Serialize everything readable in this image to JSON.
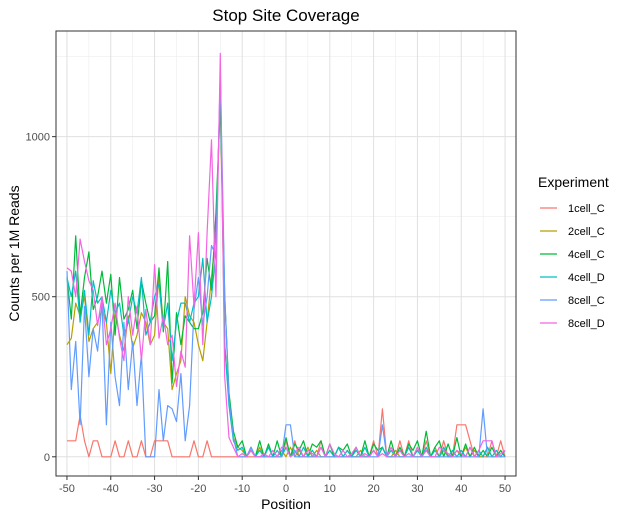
{
  "chart_data": {
    "type": "line",
    "title": "Stop Site Coverage",
    "xlabel": "Position",
    "ylabel": "Counts per 1M Reads",
    "xlim": [
      -52.5,
      52.5
    ],
    "ylim": [
      -60,
      1330
    ],
    "x_ticks": [
      -50,
      -40,
      -30,
      -20,
      -10,
      0,
      10,
      20,
      30,
      40,
      50
    ],
    "x_tick_labels": [
      "-50",
      "-40",
      "-30",
      "-20",
      "-10",
      "0",
      "10",
      "20",
      "30",
      "40",
      "50"
    ],
    "y_ticks": [
      0,
      500,
      1000
    ],
    "y_tick_labels": [
      "0",
      "500",
      "1000"
    ],
    "grid": true,
    "legend": {
      "title": "Experiment",
      "placement": "right"
    },
    "series": [
      {
        "name": "1cell_C",
        "color": "#F8766D",
        "x": [
          -50,
          -49,
          -48,
          -47,
          -46,
          -45,
          -44,
          -43,
          -42,
          -41,
          -40,
          -39,
          -38,
          -37,
          -36,
          -35,
          -34,
          -33,
          -32,
          -31,
          -30,
          -29,
          -28,
          -27,
          -26,
          -25,
          -24,
          -23,
          -22,
          -21,
          -20,
          -19,
          -18,
          -17,
          -16,
          -15,
          -14,
          -13,
          -12,
          -11,
          -10,
          -9,
          -8,
          -7,
          -6,
          -5,
          -4,
          -3,
          -2,
          -1,
          0,
          1,
          2,
          3,
          4,
          5,
          6,
          7,
          8,
          9,
          10,
          11,
          12,
          13,
          14,
          15,
          16,
          17,
          18,
          19,
          20,
          21,
          22,
          23,
          24,
          25,
          26,
          27,
          28,
          29,
          30,
          31,
          32,
          33,
          34,
          35,
          36,
          37,
          38,
          39,
          40,
          41,
          42,
          43,
          44,
          45,
          46,
          47,
          48,
          49,
          50
        ],
        "values": [
          50,
          50,
          50,
          130,
          50,
          0,
          50,
          50,
          0,
          0,
          0,
          50,
          0,
          0,
          50,
          0,
          0,
          50,
          0,
          0,
          50,
          50,
          50,
          50,
          0,
          0,
          0,
          0,
          0,
          50,
          0,
          0,
          50,
          0,
          0,
          0,
          0,
          0,
          0,
          0,
          0,
          0,
          0,
          0,
          0,
          0,
          0,
          0,
          0,
          0,
          50,
          0,
          50,
          0,
          0,
          0,
          0,
          0,
          50,
          0,
          0,
          0,
          0,
          0,
          0,
          0,
          0,
          0,
          0,
          0,
          50,
          0,
          150,
          0,
          0,
          0,
          50,
          0,
          50,
          0,
          0,
          0,
          50,
          0,
          0,
          0,
          50,
          0,
          0,
          100,
          100,
          100,
          50,
          0,
          0,
          0,
          0,
          50,
          0,
          50,
          0
        ]
      },
      {
        "name": "2cell_C",
        "color": "#B79F00",
        "x": [
          -50,
          -49,
          -48,
          -47,
          -46,
          -45,
          -44,
          -43,
          -42,
          -41,
          -40,
          -39,
          -38,
          -37,
          -36,
          -35,
          -34,
          -33,
          -32,
          -31,
          -30,
          -29,
          -28,
          -27,
          -26,
          -25,
          -24,
          -23,
          -22,
          -21,
          -20,
          -19,
          -18,
          -17,
          -16,
          -15,
          -14,
          -13,
          -12,
          -11,
          -10,
          -9,
          -8,
          -7,
          -6,
          -5,
          -4,
          -3,
          -2,
          -1,
          0,
          1,
          2,
          3,
          4,
          5,
          6,
          7,
          8,
          9,
          10,
          11,
          12,
          13,
          14,
          15,
          16,
          17,
          18,
          19,
          20,
          21,
          22,
          23,
          24,
          25,
          26,
          27,
          28,
          29,
          30,
          31,
          32,
          33,
          34,
          35,
          36,
          37,
          38,
          39,
          40,
          41,
          42,
          43,
          44,
          45,
          46,
          47,
          48,
          49,
          50
        ],
        "values": [
          350,
          370,
          480,
          440,
          500,
          360,
          400,
          420,
          460,
          420,
          260,
          450,
          380,
          330,
          440,
          340,
          380,
          450,
          420,
          350,
          380,
          570,
          420,
          400,
          210,
          260,
          300,
          500,
          440,
          420,
          350,
          300,
          420,
          560,
          700,
          1120,
          350,
          180,
          60,
          30,
          20,
          0,
          20,
          0,
          30,
          0,
          30,
          0,
          0,
          20,
          0,
          30,
          0,
          20,
          0,
          30,
          0,
          20,
          0,
          0,
          20,
          0,
          30,
          0,
          20,
          0,
          0,
          20,
          0,
          0,
          20,
          0,
          30,
          0,
          0,
          20,
          0,
          0,
          30,
          0,
          20,
          0,
          20,
          0,
          30,
          0,
          20,
          0,
          0,
          20,
          0,
          30,
          0,
          20,
          0,
          0,
          30,
          0,
          0,
          20,
          0
        ]
      },
      {
        "name": "4cell_C",
        "color": "#00BA38",
        "x": [
          -50,
          -49,
          -48,
          -47,
          -46,
          -45,
          -44,
          -43,
          -42,
          -41,
          -40,
          -39,
          -38,
          -37,
          -36,
          -35,
          -34,
          -33,
          -32,
          -31,
          -30,
          -29,
          -28,
          -27,
          -26,
          -25,
          -24,
          -23,
          -22,
          -21,
          -20,
          -19,
          -18,
          -17,
          -16,
          -15,
          -14,
          -13,
          -12,
          -11,
          -10,
          -9,
          -8,
          -7,
          -6,
          -5,
          -4,
          -3,
          -2,
          -1,
          0,
          1,
          2,
          3,
          4,
          5,
          6,
          7,
          8,
          9,
          10,
          11,
          12,
          13,
          14,
          15,
          16,
          17,
          18,
          19,
          20,
          21,
          22,
          23,
          24,
          25,
          26,
          27,
          28,
          29,
          30,
          31,
          32,
          33,
          34,
          35,
          36,
          37,
          38,
          39,
          40,
          41,
          42,
          43,
          44,
          45,
          46,
          47,
          48,
          49,
          50
        ],
        "values": [
          560,
          430,
          690,
          440,
          560,
          640,
          460,
          500,
          580,
          480,
          570,
          380,
          560,
          430,
          460,
          520,
          400,
          550,
          480,
          420,
          440,
          590,
          390,
          610,
          230,
          450,
          350,
          440,
          420,
          400,
          400,
          450,
          620,
          520,
          760,
          1100,
          500,
          200,
          80,
          30,
          50,
          0,
          30,
          0,
          50,
          0,
          40,
          0,
          50,
          0,
          60,
          0,
          40,
          20,
          50,
          0,
          40,
          30,
          50,
          0,
          40,
          0,
          30,
          20,
          40,
          0,
          30,
          0,
          50,
          0,
          40,
          20,
          30,
          0,
          50,
          0,
          30,
          0,
          40,
          20,
          50,
          0,
          80,
          0,
          30,
          50,
          0,
          40,
          0,
          60,
          0,
          40,
          0,
          30,
          0,
          20,
          0,
          30,
          0,
          20,
          0
        ]
      },
      {
        "name": "4cell_D",
        "color": "#00BFC4",
        "x": [
          -50,
          -49,
          -48,
          -47,
          -46,
          -45,
          -44,
          -43,
          -42,
          -41,
          -40,
          -39,
          -38,
          -37,
          -36,
          -35,
          -34,
          -33,
          -32,
          -31,
          -30,
          -29,
          -28,
          -27,
          -26,
          -25,
          -24,
          -23,
          -22,
          -21,
          -20,
          -19,
          -18,
          -17,
          -16,
          -15,
          -14,
          -13,
          -12,
          -11,
          -10,
          -9,
          -8,
          -7,
          -6,
          -5,
          -4,
          -3,
          -2,
          -1,
          0,
          1,
          2,
          3,
          4,
          5,
          6,
          7,
          8,
          9,
          10,
          11,
          12,
          13,
          14,
          15,
          16,
          17,
          18,
          19,
          20,
          21,
          22,
          23,
          24,
          25,
          26,
          27,
          28,
          29,
          30,
          31,
          32,
          33,
          34,
          35,
          36,
          37,
          38,
          39,
          40,
          41,
          42,
          43,
          44,
          45,
          46,
          47,
          48,
          49,
          50
        ],
        "values": [
          560,
          500,
          580,
          420,
          520,
          380,
          550,
          480,
          500,
          420,
          520,
          450,
          480,
          380,
          420,
          500,
          450,
          560,
          380,
          420,
          500,
          540,
          400,
          480,
          300,
          420,
          480,
          480,
          420,
          480,
          500,
          620,
          420,
          500,
          640,
          1180,
          350,
          160,
          50,
          20,
          30,
          0,
          20,
          0,
          20,
          0,
          30,
          0,
          20,
          0,
          30,
          0,
          20,
          0,
          30,
          0,
          20,
          0,
          30,
          0,
          20,
          0,
          30,
          0,
          20,
          0,
          20,
          0,
          30,
          0,
          20,
          0,
          30,
          0,
          20,
          0,
          20,
          0,
          30,
          0,
          20,
          0,
          30,
          0,
          20,
          0,
          30,
          0,
          20,
          0,
          20,
          0,
          30,
          0,
          20,
          0,
          30,
          0,
          20,
          0,
          20
        ]
      },
      {
        "name": "8cell_C",
        "color": "#619CFF",
        "x": [
          -50,
          -49,
          -48,
          -47,
          -46,
          -45,
          -44,
          -43,
          -42,
          -41,
          -40,
          -39,
          -38,
          -37,
          -36,
          -35,
          -34,
          -33,
          -32,
          -31,
          -30,
          -29,
          -28,
          -27,
          -26,
          -25,
          -24,
          -23,
          -22,
          -21,
          -20,
          -19,
          -18,
          -17,
          -16,
          -15,
          -14,
          -13,
          -12,
          -11,
          -10,
          -9,
          -8,
          -7,
          -6,
          -5,
          -4,
          -3,
          -2,
          -1,
          0,
          1,
          2,
          3,
          4,
          5,
          6,
          7,
          8,
          9,
          10,
          11,
          12,
          13,
          14,
          15,
          16,
          17,
          18,
          19,
          20,
          21,
          22,
          23,
          24,
          25,
          26,
          27,
          28,
          29,
          30,
          31,
          32,
          33,
          34,
          35,
          36,
          37,
          38,
          39,
          40,
          41,
          42,
          43,
          44,
          45,
          46,
          47,
          48,
          49,
          50
        ],
        "values": [
          580,
          210,
          360,
          100,
          470,
          250,
          400,
          330,
          480,
          100,
          420,
          250,
          160,
          420,
          210,
          360,
          160,
          320,
          0,
          0,
          0,
          210,
          50,
          160,
          150,
          110,
          260,
          50,
          160,
          460,
          560,
          410,
          500,
          660,
          630,
          1200,
          510,
          180,
          60,
          0,
          0,
          0,
          30,
          0,
          0,
          0,
          0,
          0,
          0,
          0,
          100,
          100,
          0,
          0,
          0,
          0,
          0,
          0,
          0,
          0,
          0,
          0,
          0,
          0,
          0,
          0,
          0,
          0,
          0,
          0,
          0,
          0,
          100,
          0,
          0,
          0,
          0,
          0,
          0,
          0,
          0,
          0,
          0,
          0,
          0,
          0,
          0,
          0,
          0,
          0,
          0,
          0,
          0,
          0,
          0,
          150,
          0,
          0,
          0,
          0,
          0
        ]
      },
      {
        "name": "8cell_D",
        "color": "#F564E3",
        "x": [
          -50,
          -49,
          -48,
          -47,
          -46,
          -45,
          -44,
          -43,
          -42,
          -41,
          -40,
          -39,
          -38,
          -37,
          -36,
          -35,
          -34,
          -33,
          -32,
          -31,
          -30,
          -29,
          -28,
          -27,
          -26,
          -25,
          -24,
          -23,
          -22,
          -21,
          -20,
          -19,
          -18,
          -17,
          -16,
          -15,
          -14,
          -13,
          -12,
          -11,
          -10,
          -9,
          -8,
          -7,
          -6,
          -5,
          -4,
          -3,
          -2,
          -1,
          0,
          1,
          2,
          3,
          4,
          5,
          6,
          7,
          8,
          9,
          10,
          11,
          12,
          13,
          14,
          15,
          16,
          17,
          18,
          19,
          20,
          21,
          22,
          23,
          24,
          25,
          26,
          27,
          28,
          29,
          30,
          31,
          32,
          33,
          34,
          35,
          36,
          37,
          38,
          39,
          40,
          41,
          42,
          43,
          44,
          45,
          46,
          47,
          48,
          49,
          50
        ],
        "values": [
          590,
          580,
          500,
          680,
          610,
          550,
          520,
          410,
          500,
          350,
          400,
          480,
          370,
          300,
          500,
          380,
          470,
          300,
          460,
          350,
          600,
          370,
          440,
          350,
          380,
          220,
          330,
          280,
          690,
          470,
          700,
          350,
          700,
          990,
          500,
          1260,
          250,
          60,
          30,
          0,
          10,
          0,
          20,
          0,
          0,
          10,
          0,
          20,
          0,
          30,
          30,
          0,
          10,
          30,
          0,
          20,
          10,
          0,
          30,
          0,
          40,
          10,
          0,
          20,
          0,
          10,
          30,
          0,
          10,
          0,
          20,
          0,
          10,
          0,
          30,
          0,
          20,
          0,
          10,
          0,
          30,
          0,
          20,
          0,
          0,
          30,
          20,
          10,
          0,
          20,
          10,
          0,
          30,
          0,
          20,
          50,
          50,
          50,
          0,
          10,
          20
        ]
      }
    ]
  }
}
